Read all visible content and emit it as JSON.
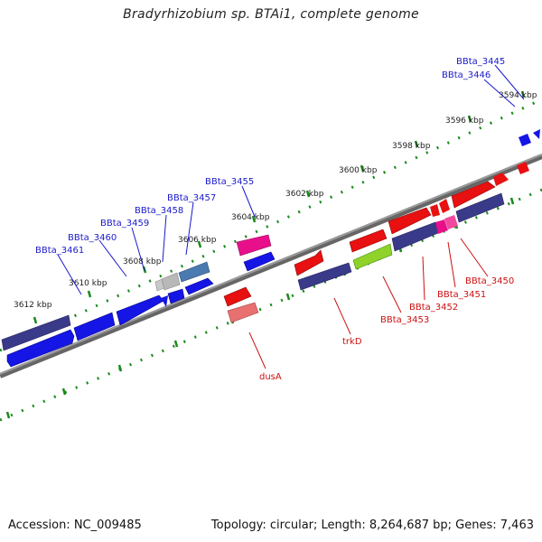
{
  "title": "Bradyrhizobium sp. BTAi1, complete genome",
  "footer": {
    "accession": "Accession: NC_009485",
    "summary": "Topology: circular; Length: 8,264,687 bp; Genes: 7,463"
  },
  "tick_labels": [
    "3594 kbp",
    "3596 kbp",
    "3598 kbp",
    "3600 kbp",
    "3602 kbp",
    "3604 kbp",
    "3606 kbp",
    "3608 kbp",
    "3610 kbp",
    "3612 kbp"
  ],
  "gene_labels_top": [
    "BBta_3445",
    "BBta_3446",
    "BBta_3455",
    "BBta_3457",
    "BBta_3458",
    "BBta_3459",
    "BBta_3460",
    "BBta_3461"
  ],
  "gene_labels_bottom": [
    "dusA",
    "trkD",
    "BBta_3453",
    "BBta_3452",
    "BBta_3451",
    "BBta_3450"
  ],
  "colors": {
    "cds_blue": "#1515e6",
    "cds_navy": "#3a3a8a",
    "cds_red": "#e81010",
    "cds_pink": "#e8108a",
    "cds_green": "#8ed22a",
    "cds_grey": "#b8b8b8",
    "cds_steel": "#4a7ab0",
    "cds_salmon": "#e87070",
    "backbone": "#808080",
    "tick": "#1a8a1a"
  }
}
